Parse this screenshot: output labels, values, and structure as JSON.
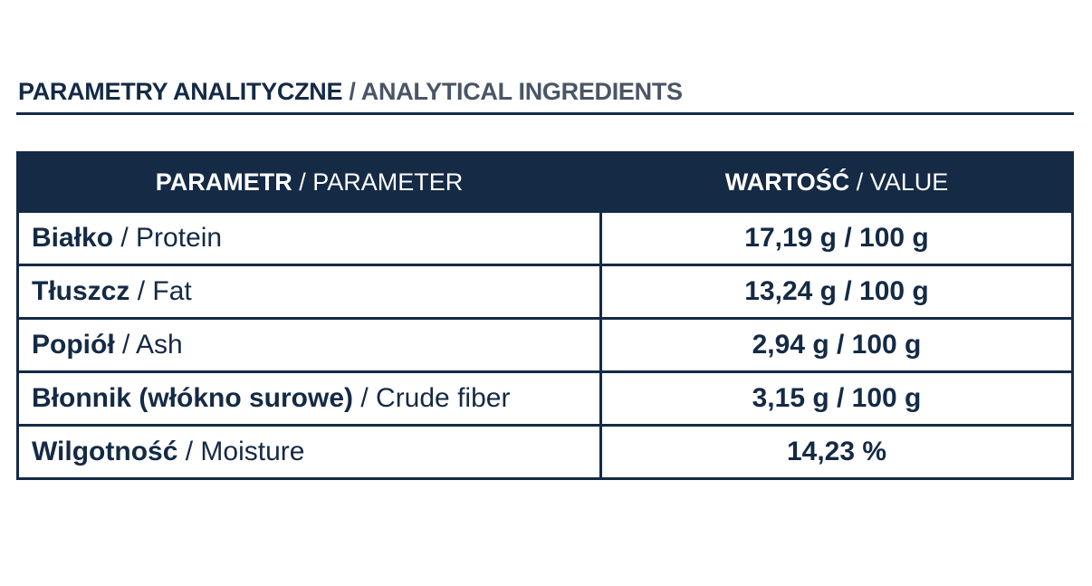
{
  "title": {
    "bold": "PARAMETRY ANALITYCZNE",
    "regular": "/ ANALYTICAL INGREDIENTS"
  },
  "table": {
    "header": [
      {
        "bold": "PARAMETR",
        "regular": "/ PARAMETER"
      },
      {
        "bold": "WARTOŚĆ",
        "regular": "/ VALUE"
      }
    ],
    "rows": [
      [
        {
          "bold": "Białko",
          "regular": "/ Protein"
        },
        "17,19 g / 100 g"
      ],
      [
        {
          "bold": "Tłuszcz",
          "regular": "/ Fat"
        },
        "13,24 g / 100 g"
      ],
      [
        {
          "bold": "Popiół",
          "regular": "/ Ash"
        },
        "2,94 g / 100 g"
      ],
      [
        {
          "bold": "Błonnik (włókno surowe)",
          "regular": "/ Crude fiber"
        },
        "3,15 g / 100 g"
      ],
      [
        {
          "bold": "Wilgotność",
          "regular": "/ Moisture"
        },
        "14,23 %"
      ]
    ]
  }
}
